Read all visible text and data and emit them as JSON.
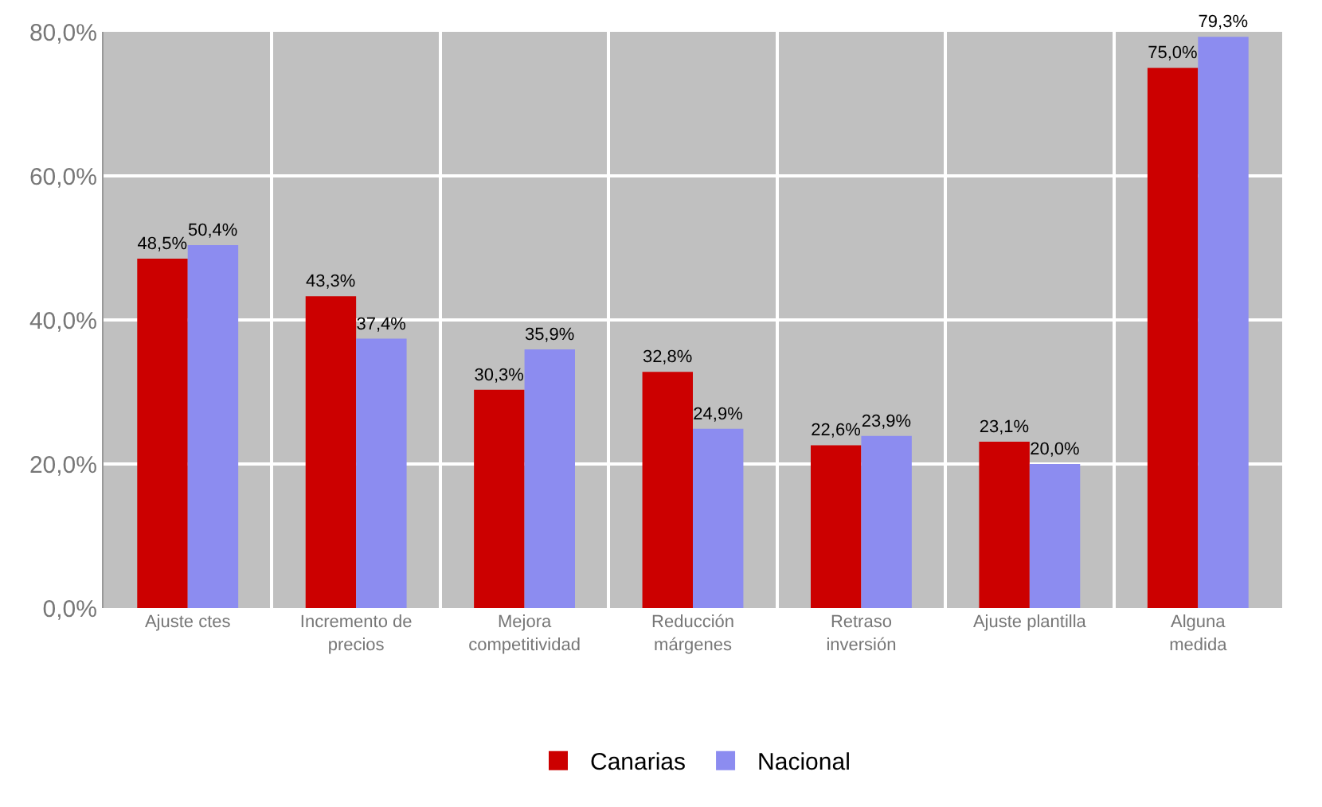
{
  "chart_data": {
    "type": "bar",
    "categories": [
      "Ajuste ctes",
      "Incremento de\nprecios",
      "Mejora\ncompetitividad",
      "Reducción\nmárgenes",
      "Retraso\ninversión",
      "Ajuste plantilla",
      "Alguna\nmedida"
    ],
    "series": [
      {
        "name": "Canarias",
        "color": "#cc0000",
        "values": [
          48.5,
          43.3,
          30.3,
          32.8,
          22.6,
          23.1,
          75.0
        ],
        "value_labels": [
          "48,5%",
          "43,3%",
          "30,3%",
          "32,8%",
          "22,6%",
          "23,1%",
          "75,0%"
        ]
      },
      {
        "name": "Nacional",
        "color": "#8c8cf0",
        "values": [
          50.4,
          37.4,
          35.9,
          24.9,
          23.9,
          20.0,
          79.3
        ],
        "value_labels": [
          "50,4%",
          "37,4%",
          "35,9%",
          "24,9%",
          "23,9%",
          "20,0%",
          "79,3%"
        ]
      }
    ],
    "ylim": [
      0,
      80
    ],
    "yticks": [
      {
        "value": 0,
        "label": "0,0%"
      },
      {
        "value": 20,
        "label": "20,0%"
      },
      {
        "value": 40,
        "label": "40,0%"
      },
      {
        "value": 60,
        "label": "60,0%"
      },
      {
        "value": 80,
        "label": "80,0%"
      }
    ],
    "grid": true,
    "legend": "bottom"
  }
}
